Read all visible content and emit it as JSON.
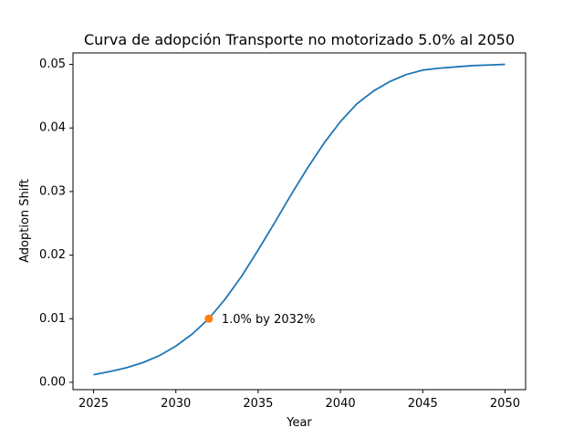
{
  "chart_data": {
    "type": "line",
    "title": "Curva de adopción Transporte no motorizado 5.0% al 2050",
    "xlabel": "Year",
    "ylabel": "Adoption Shift",
    "xlim": [
      2023.75,
      2051.25
    ],
    "ylim": [
      -0.00115,
      0.0518
    ],
    "xticks": [
      2025,
      2030,
      2035,
      2040,
      2045,
      2050
    ],
    "xtick_labels": [
      "2025",
      "2030",
      "2035",
      "2040",
      "2045",
      "2050"
    ],
    "yticks": [
      0.0,
      0.01,
      0.02,
      0.03,
      0.04,
      0.05
    ],
    "ytick_labels": [
      "0.00",
      "0.01",
      "0.02",
      "0.03",
      "0.04",
      "0.05"
    ],
    "grid": false,
    "series": [
      {
        "color": "#1f77b4",
        "x": [
          2025,
          2026,
          2027,
          2028,
          2029,
          2030,
          2031,
          2032,
          2033,
          2034,
          2035,
          2036,
          2037,
          2038,
          2039,
          2040,
          2041,
          2042,
          2043,
          2044,
          2045,
          2046,
          2047,
          2048,
          2049,
          2050
        ],
        "y": [
          0.0012,
          0.0017,
          0.0023,
          0.0031,
          0.0042,
          0.0057,
          0.0076,
          0.01,
          0.0131,
          0.0167,
          0.0208,
          0.0251,
          0.0295,
          0.0337,
          0.0376,
          0.041,
          0.0438,
          0.0458,
          0.0473,
          0.0484,
          0.0491,
          0.0494,
          0.0496,
          0.0498,
          0.0499,
          0.05
        ]
      }
    ],
    "highlight_point": {
      "x": 2032,
      "y": 0.01,
      "color": "#ff7f0e"
    },
    "annotation": {
      "text": "1.0% by 2032%",
      "x": 2033,
      "y": 0.01
    }
  }
}
